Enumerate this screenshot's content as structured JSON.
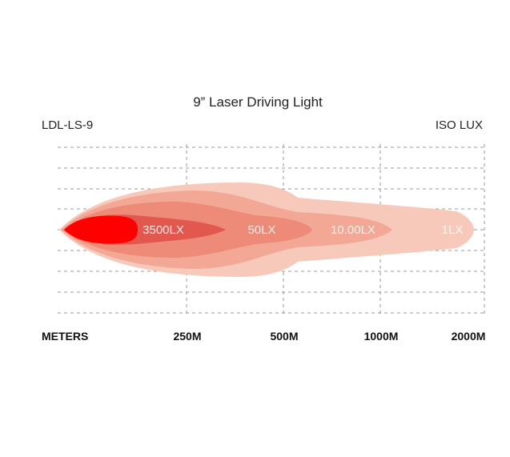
{
  "chart_data": {
    "type": "area",
    "title": "9” Laser Driving Light",
    "model": "LDL-LS-9",
    "unit_label": "ISO LUX",
    "x_axis_label": "METERS",
    "x_ticks": [
      "250M",
      "500M",
      "1000M",
      "2000M"
    ],
    "zones": [
      {
        "label": "1LX",
        "color": "#f7c9bb"
      },
      {
        "label": "10.00LX",
        "color": "#f3a896"
      },
      {
        "label": "50LX",
        "color": "#ed8a78"
      },
      {
        "label": "3500LX",
        "color": "#e2584f"
      },
      {
        "label": "",
        "color": "#ff0000"
      }
    ],
    "grid": true
  }
}
